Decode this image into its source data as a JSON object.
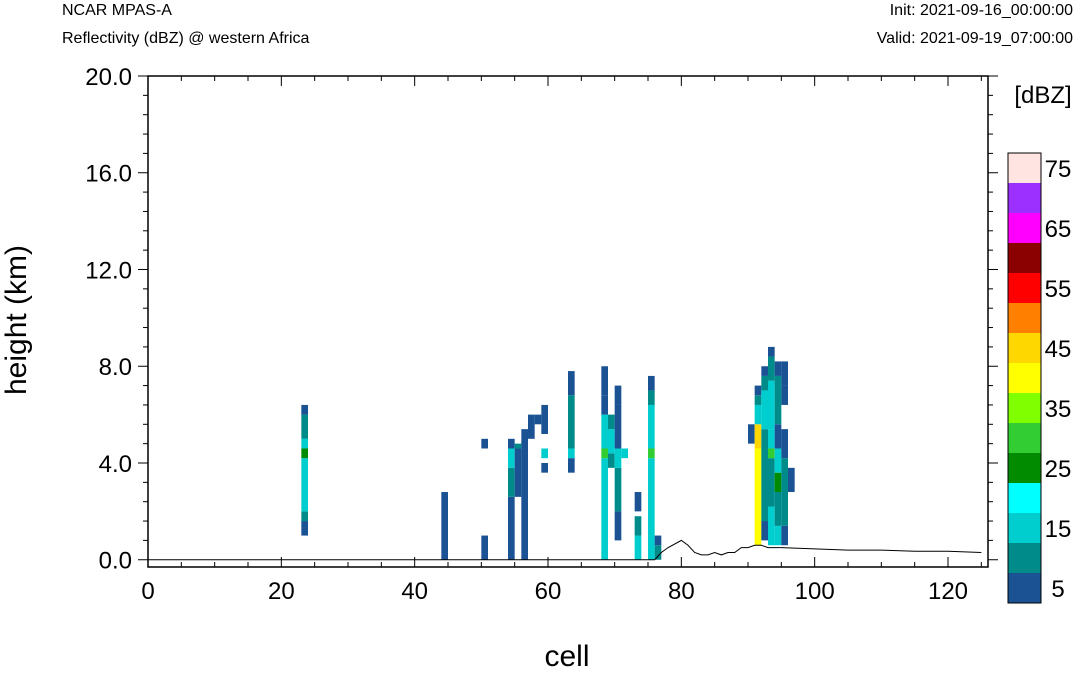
{
  "header": {
    "model": "NCAR MPAS-A",
    "field": "Reflectivity (dBZ) @ western Africa",
    "init": "Init: 2021-09-16_00:00:00",
    "valid": "Valid: 2021-09-19_07:00:00"
  },
  "chart_data": {
    "type": "heatmap",
    "title": "NCAR MPAS-A",
    "subtitle": "Reflectivity (dBZ) @ western Africa",
    "xlabel": "cell",
    "ylabel": "height (km)",
    "xlim": [
      0,
      126
    ],
    "ylim": [
      -0.3,
      20
    ],
    "xticks": [
      "0",
      "20",
      "40",
      "60",
      "80",
      "100",
      "120"
    ],
    "yticks": [
      "0.0",
      "4.0",
      "8.0",
      "12.0",
      "16.0",
      "20.0"
    ],
    "grid": false,
    "colorbar": {
      "label": "[dBZ]",
      "levels": [
        "5",
        "15",
        "25",
        "35",
        "45",
        "55",
        "65",
        "75"
      ],
      "colors": [
        "#1a5293",
        "#008b8b",
        "#00cdcd",
        "#00ffff",
        "#008b00",
        "#32cd32",
        "#7fff00",
        "#ffff00",
        "#ffd700",
        "#ff7f00",
        "#ff0000",
        "#8b0000",
        "#ff00ff",
        "#9b30ff",
        "#ffe4e1"
      ]
    },
    "columns": [
      {
        "x": 23,
        "cells": [
          [
            1,
            1.6,
            0
          ],
          [
            1.6,
            2.0,
            1
          ],
          [
            2.0,
            4.2,
            2
          ],
          [
            4.2,
            4.6,
            4
          ],
          [
            4.6,
            5.0,
            2
          ],
          [
            5.0,
            6.0,
            1
          ],
          [
            6.0,
            6.4,
            0
          ]
        ]
      },
      {
        "x": 44,
        "cells": [
          [
            0,
            2.8,
            0
          ]
        ]
      },
      {
        "x": 50,
        "cells": [
          [
            0,
            1.0,
            0
          ],
          [
            4.6,
            5.0,
            0
          ]
        ]
      },
      {
        "x": 54,
        "cells": [
          [
            0,
            2.6,
            0
          ],
          [
            2.6,
            3.8,
            1
          ],
          [
            3.8,
            4.6,
            2
          ],
          [
            4.6,
            5.0,
            0
          ]
        ]
      },
      {
        "x": 55,
        "cells": [
          [
            2.6,
            4.6,
            0
          ],
          [
            4.6,
            4.8,
            1
          ]
        ]
      },
      {
        "x": 56,
        "cells": [
          [
            0,
            4.6,
            0
          ],
          [
            4.6,
            5.4,
            0
          ]
        ]
      },
      {
        "x": 57,
        "cells": [
          [
            5.0,
            6.0,
            0
          ]
        ]
      },
      {
        "x": 58,
        "cells": [
          [
            5.6,
            6.0,
            0
          ]
        ]
      },
      {
        "x": 59,
        "cells": [
          [
            3.6,
            4.0,
            0
          ],
          [
            4.2,
            4.6,
            2
          ],
          [
            5.2,
            6.4,
            0
          ]
        ]
      },
      {
        "x": 63,
        "cells": [
          [
            3.6,
            4.2,
            0
          ],
          [
            4.2,
            4.6,
            2
          ],
          [
            4.6,
            6.8,
            1
          ],
          [
            6.8,
            7.8,
            0
          ]
        ]
      },
      {
        "x": 68,
        "cells": [
          [
            0,
            4.2,
            2
          ],
          [
            4.2,
            4.6,
            5
          ],
          [
            4.6,
            6.0,
            2
          ],
          [
            6.0,
            6.8,
            0
          ],
          [
            6.8,
            8.0,
            0
          ]
        ]
      },
      {
        "x": 69,
        "cells": [
          [
            3.8,
            4.4,
            1
          ],
          [
            4.4,
            5.4,
            2
          ],
          [
            5.4,
            6.0,
            1
          ]
        ]
      },
      {
        "x": 70,
        "cells": [
          [
            0.8,
            2.0,
            0
          ],
          [
            2.0,
            3.8,
            1
          ],
          [
            3.8,
            4.6,
            2
          ],
          [
            4.6,
            6.4,
            0
          ],
          [
            6.4,
            7.2,
            0
          ]
        ]
      },
      {
        "x": 71,
        "cells": [
          [
            4.2,
            4.6,
            2
          ]
        ]
      },
      {
        "x": 73,
        "cells": [
          [
            0,
            1.0,
            2
          ],
          [
            1.0,
            1.8,
            1
          ],
          [
            2.0,
            2.8,
            0
          ]
        ]
      },
      {
        "x": 75,
        "cells": [
          [
            0,
            4.2,
            2
          ],
          [
            4.2,
            4.6,
            5
          ],
          [
            4.6,
            6.4,
            2
          ],
          [
            6.4,
            7.0,
            1
          ],
          [
            7.0,
            7.6,
            0
          ]
        ]
      },
      {
        "x": 76,
        "cells": [
          [
            0,
            0.6,
            1
          ],
          [
            0.6,
            1.0,
            0
          ]
        ]
      },
      {
        "x": 90,
        "cells": [
          [
            4.8,
            5.6,
            0
          ]
        ]
      },
      {
        "x": 91,
        "cells": [
          [
            0.6,
            4.6,
            7
          ],
          [
            4.6,
            5.6,
            8
          ],
          [
            5.6,
            6.4,
            2
          ],
          [
            6.4,
            6.8,
            1
          ],
          [
            6.8,
            7.2,
            0
          ]
        ]
      },
      {
        "x": 92,
        "cells": [
          [
            0.8,
            1.6,
            0
          ],
          [
            1.6,
            5.4,
            1
          ],
          [
            5.4,
            7.0,
            2
          ],
          [
            7.0,
            7.6,
            1
          ],
          [
            7.6,
            8.0,
            0
          ]
        ]
      },
      {
        "x": 93,
        "cells": [
          [
            0.6,
            2.2,
            2
          ],
          [
            2.2,
            4.2,
            1
          ],
          [
            4.2,
            4.6,
            5
          ],
          [
            4.6,
            5.4,
            2
          ],
          [
            5.4,
            7.4,
            2
          ],
          [
            7.4,
            8.4,
            1
          ],
          [
            8.4,
            8.8,
            0
          ]
        ]
      },
      {
        "x": 94,
        "cells": [
          [
            0.6,
            1.4,
            2
          ],
          [
            1.4,
            2.8,
            1
          ],
          [
            2.8,
            3.6,
            4
          ],
          [
            3.6,
            4.6,
            2
          ],
          [
            4.6,
            5.6,
            0
          ],
          [
            5.6,
            7.6,
            1
          ],
          [
            7.6,
            8.2,
            0
          ]
        ]
      },
      {
        "x": 95,
        "cells": [
          [
            0.6,
            1.4,
            0
          ],
          [
            1.4,
            4.2,
            1
          ],
          [
            4.2,
            5.4,
            0
          ],
          [
            6.4,
            7.2,
            0
          ],
          [
            7.2,
            8.2,
            0
          ]
        ]
      },
      {
        "x": 96,
        "cells": [
          [
            2.8,
            3.8,
            0
          ]
        ]
      }
    ],
    "terrain": [
      [
        0,
        0
      ],
      [
        76,
        0
      ],
      [
        77,
        0.3
      ],
      [
        78,
        0.5
      ],
      [
        80,
        0.8
      ],
      [
        81,
        0.6
      ],
      [
        82,
        0.3
      ],
      [
        83,
        0.2
      ],
      [
        84,
        0.2
      ],
      [
        85,
        0.3
      ],
      [
        86,
        0.2
      ],
      [
        87,
        0.3
      ],
      [
        88,
        0.3
      ],
      [
        89,
        0.5
      ],
      [
        90,
        0.5
      ],
      [
        91,
        0.6
      ],
      [
        92,
        0.6
      ],
      [
        93,
        0.5
      ],
      [
        95,
        0.5
      ],
      [
        100,
        0.45
      ],
      [
        105,
        0.4
      ],
      [
        110,
        0.4
      ],
      [
        115,
        0.35
      ],
      [
        120,
        0.35
      ],
      [
        125,
        0.3
      ]
    ]
  }
}
